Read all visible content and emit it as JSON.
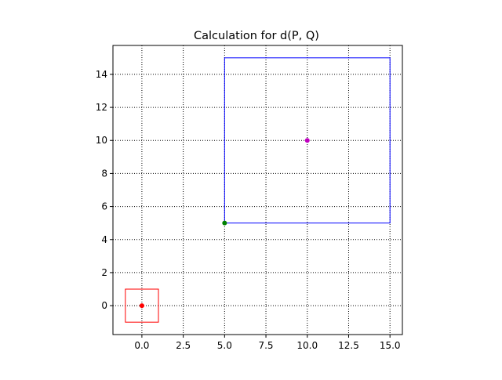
{
  "chart_data": {
    "type": "scatter",
    "title": "Calculation for d(P, Q)",
    "xlabel": "",
    "ylabel": "",
    "xlim": [
      -1.75,
      15.75
    ],
    "ylim": [
      -1.75,
      15.75
    ],
    "grid": true,
    "grid_style": "dotted",
    "x_ticks": [
      0.0,
      2.5,
      5.0,
      7.5,
      10.0,
      12.5,
      15.0
    ],
    "x_tick_labels": [
      "0.0",
      "2.5",
      "5.0",
      "7.5",
      "10.0",
      "12.5",
      "15.0"
    ],
    "y_ticks": [
      0,
      2,
      4,
      6,
      8,
      10,
      12,
      14
    ],
    "y_tick_labels": [
      "0",
      "2",
      "4",
      "6",
      "8",
      "10",
      "12",
      "14"
    ],
    "boxes": [
      {
        "x0": -1,
        "y0": -1,
        "x1": 1,
        "y1": 1,
        "color": "#ff0000"
      },
      {
        "x0": 5,
        "y0": 5,
        "x1": 15,
        "y1": 15,
        "color": "#0000ff"
      }
    ],
    "points": [
      {
        "x": 0,
        "y": 0,
        "color": "#ff0000"
      },
      {
        "x": 5,
        "y": 5,
        "color": "#008000"
      },
      {
        "x": 10,
        "y": 10,
        "color": "#bf00bf"
      }
    ]
  }
}
